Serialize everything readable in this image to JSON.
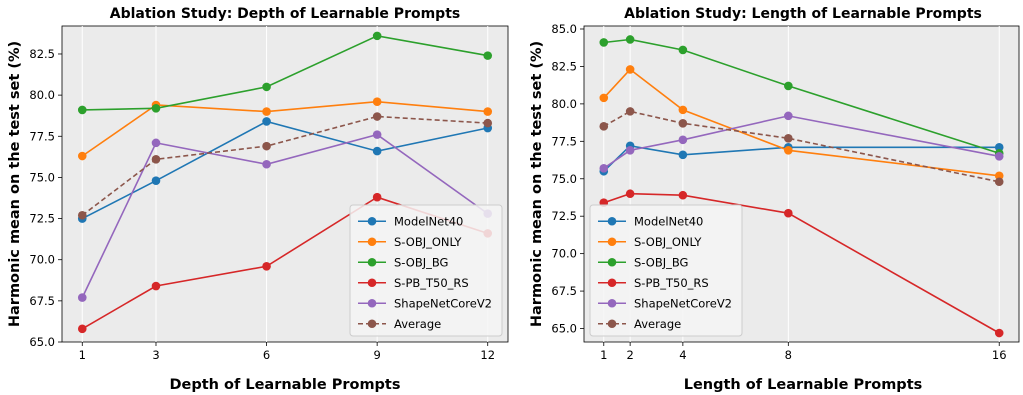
{
  "chart_data": [
    {
      "type": "line",
      "title": "Ablation Study: Depth of Learnable Prompts",
      "xlabel": "Depth of Learnable Prompts",
      "ylabel": "Harmonic mean on the test set (%)",
      "x": [
        1,
        3,
        6,
        9,
        12
      ],
      "x_ticks": [
        "1",
        "3",
        "6",
        "9",
        "12"
      ],
      "xlim": [
        0.45,
        12.55
      ],
      "ylim": [
        65.0,
        84.2
      ],
      "y_ticks": [
        65.0,
        67.5,
        70.0,
        72.5,
        75.0,
        77.5,
        80.0,
        82.5
      ],
      "y_tick_labels": [
        "65.0",
        "67.5",
        "70.0",
        "72.5",
        "75.0",
        "77.5",
        "80.0",
        "82.5"
      ],
      "grid": "vertical",
      "legend_position": "lower-right",
      "series": [
        {
          "name": "ModelNet40",
          "color": "#1f77b4",
          "style": "solid",
          "values": [
            72.5,
            74.8,
            78.4,
            76.6,
            78.0
          ]
        },
        {
          "name": "S-OBJ_ONLY",
          "color": "#ff7f0e",
          "style": "solid",
          "values": [
            76.3,
            79.4,
            79.0,
            79.6,
            79.0
          ]
        },
        {
          "name": "S-OBJ_BG",
          "color": "#2ca02c",
          "style": "solid",
          "values": [
            79.1,
            79.2,
            80.5,
            83.6,
            82.4
          ]
        },
        {
          "name": "S-PB_T50_RS",
          "color": "#d62728",
          "style": "solid",
          "values": [
            65.8,
            68.4,
            69.6,
            73.8,
            71.6
          ]
        },
        {
          "name": "ShapeNetCoreV2",
          "color": "#9467bd",
          "style": "solid",
          "values": [
            67.7,
            77.1,
            75.8,
            77.6,
            72.8
          ]
        },
        {
          "name": "Average",
          "color": "#8c564b",
          "style": "dashed",
          "values": [
            72.7,
            76.1,
            76.9,
            78.7,
            78.3
          ]
        }
      ]
    },
    {
      "type": "line",
      "title": "Ablation Study: Length of Learnable Prompts",
      "xlabel": "Length of Learnable Prompts",
      "ylabel": "Harmonic mean on the test set (%)",
      "x": [
        1,
        2,
        4,
        8,
        16
      ],
      "x_ticks": [
        "1",
        "2",
        "4",
        "8",
        "16"
      ],
      "xlim": [
        0.25,
        16.75
      ],
      "ylim": [
        64.1,
        85.2
      ],
      "y_ticks": [
        65.0,
        67.5,
        70.0,
        72.5,
        75.0,
        77.5,
        80.0,
        82.5,
        85.0
      ],
      "y_tick_labels": [
        "65.0",
        "67.5",
        "70.0",
        "72.5",
        "75.0",
        "77.5",
        "80.0",
        "82.5",
        "85.0"
      ],
      "grid": "vertical",
      "legend_position": "lower-left",
      "series": [
        {
          "name": "ModelNet40",
          "color": "#1f77b4",
          "style": "solid",
          "values": [
            75.5,
            77.2,
            76.6,
            77.1,
            77.1
          ]
        },
        {
          "name": "S-OBJ_ONLY",
          "color": "#ff7f0e",
          "style": "solid",
          "values": [
            80.4,
            82.3,
            79.6,
            76.9,
            75.2
          ]
        },
        {
          "name": "S-OBJ_BG",
          "color": "#2ca02c",
          "style": "solid",
          "values": [
            84.1,
            84.3,
            83.6,
            81.2,
            76.7
          ]
        },
        {
          "name": "S-PB_T50_RS",
          "color": "#d62728",
          "style": "solid",
          "values": [
            73.4,
            74.0,
            73.9,
            72.7,
            64.7
          ]
        },
        {
          "name": "ShapeNetCoreV2",
          "color": "#9467bd",
          "style": "solid",
          "values": [
            75.7,
            76.9,
            77.6,
            79.2,
            76.5
          ]
        },
        {
          "name": "Average",
          "color": "#8c564b",
          "style": "dashed",
          "values": [
            78.5,
            79.5,
            78.7,
            77.7,
            74.8
          ]
        }
      ]
    }
  ]
}
